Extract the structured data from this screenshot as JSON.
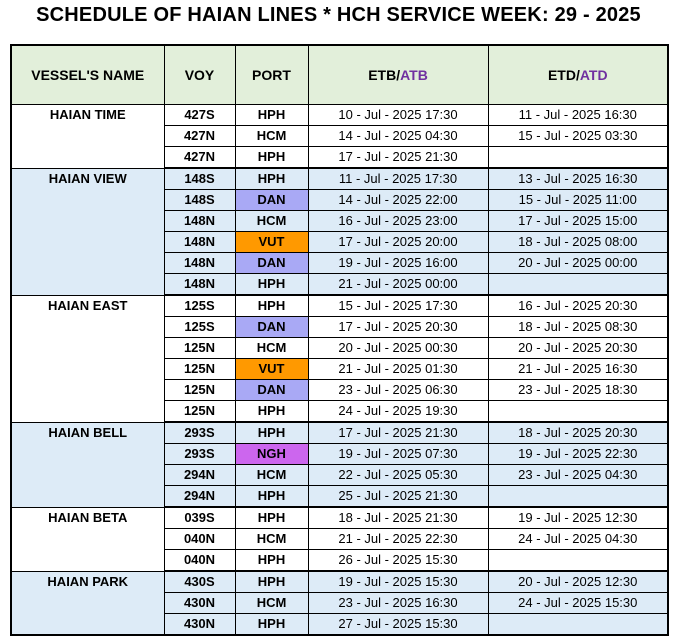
{
  "title": "SCHEDULE OF HAIAN LINES * HCH SERVICE WEEK: 29 - 2025",
  "headers": {
    "vessel": "VESSEL'S NAME",
    "voy": "VOY",
    "port": "PORT",
    "etb_a": "ETB/",
    "etb_b": "ATB",
    "etd_a": "ETD/",
    "etd_b": "ATD"
  },
  "colors": {
    "header_bg": "#e2efda",
    "group_blue_bg": "#ddebf7",
    "accent_purple": "#7030a0",
    "port_dan": "#a9a9f5",
    "port_vut": "#ff9900",
    "port_ngh": "#cc66ee"
  },
  "vessels": [
    {
      "name": "HAIAN TIME",
      "rows": [
        {
          "voy": "427S",
          "port": "HPH",
          "etb": "10 - Jul - 2025 17:30",
          "etd": "11 - Jul - 2025 16:30"
        },
        {
          "voy": "427N",
          "port": "HCM",
          "etb": "14 - Jul - 2025 04:30",
          "etd": "15 - Jul - 2025 03:30"
        },
        {
          "voy": "427N",
          "port": "HPH",
          "etb": "17 - Jul - 2025 21:30",
          "etd": ""
        }
      ]
    },
    {
      "name": "HAIAN VIEW",
      "rows": [
        {
          "voy": "148S",
          "port": "HPH",
          "etb": "11 - Jul - 2025 17:30",
          "etd": "13 - Jul - 2025 16:30"
        },
        {
          "voy": "148S",
          "port": "DAN",
          "etb": "14 - Jul - 2025 22:00",
          "etd": "15 - Jul - 2025 11:00"
        },
        {
          "voy": "148N",
          "port": "HCM",
          "etb": "16 - Jul - 2025 23:00",
          "etd": "17 - Jul - 2025 15:00"
        },
        {
          "voy": "148N",
          "port": "VUT",
          "etb": "17 - Jul - 2025 20:00",
          "etd": "18 - Jul - 2025 08:00"
        },
        {
          "voy": "148N",
          "port": "DAN",
          "etb": "19 - Jul - 2025 16:00",
          "etd": "20 - Jul - 2025 00:00"
        },
        {
          "voy": "148N",
          "port": "HPH",
          "etb": "21 - Jul - 2025 00:00",
          "etd": ""
        }
      ]
    },
    {
      "name": "HAIAN EAST",
      "rows": [
        {
          "voy": "125S",
          "port": "HPH",
          "etb": "15 - Jul - 2025 17:30",
          "etd": "16 - Jul - 2025 20:30"
        },
        {
          "voy": "125S",
          "port": "DAN",
          "etb": "17 - Jul - 2025 20:30",
          "etd": "18 - Jul - 2025 08:30"
        },
        {
          "voy": "125N",
          "port": "HCM",
          "etb": "20 - Jul - 2025 00:30",
          "etd": "20 - Jul - 2025 20:30"
        },
        {
          "voy": "125N",
          "port": "VUT",
          "etb": "21 - Jul - 2025 01:30",
          "etd": "21 - Jul - 2025 16:30"
        },
        {
          "voy": "125N",
          "port": "DAN",
          "etb": "23 - Jul - 2025 06:30",
          "etd": "23 - Jul - 2025 18:30"
        },
        {
          "voy": "125N",
          "port": "HPH",
          "etb": "24 - Jul - 2025 19:30",
          "etd": ""
        }
      ]
    },
    {
      "name": "HAIAN BELL",
      "rows": [
        {
          "voy": "293S",
          "port": "HPH",
          "etb": "17 - Jul - 2025 21:30",
          "etd": "18 - Jul - 2025 20:30"
        },
        {
          "voy": "293S",
          "port": "NGH",
          "etb": "19 - Jul - 2025 07:30",
          "etd": "19 - Jul - 2025 22:30"
        },
        {
          "voy": "294N",
          "port": "HCM",
          "etb": "22 - Jul - 2025 05:30",
          "etd": "23 - Jul - 2025 04:30"
        },
        {
          "voy": "294N",
          "port": "HPH",
          "etb": "25 - Jul - 2025 21:30",
          "etd": ""
        }
      ]
    },
    {
      "name": "HAIAN BETA",
      "rows": [
        {
          "voy": "039S",
          "port": "HPH",
          "etb": "18 - Jul - 2025 21:30",
          "etd": "19 - Jul - 2025 12:30"
        },
        {
          "voy": "040N",
          "port": "HCM",
          "etb": "21 - Jul - 2025 22:30",
          "etd": "24 - Jul - 2025 04:30"
        },
        {
          "voy": "040N",
          "port": "HPH",
          "etb": "26 - Jul - 2025 15:30",
          "etd": ""
        }
      ]
    },
    {
      "name": "HAIAN PARK",
      "rows": [
        {
          "voy": "430S",
          "port": "HPH",
          "etb": "19 - Jul - 2025 15:30",
          "etd": "20 - Jul - 2025 12:30"
        },
        {
          "voy": "430N",
          "port": "HCM",
          "etb": "23 - Jul - 2025 16:30",
          "etd": "24 - Jul - 2025 15:30"
        },
        {
          "voy": "430N",
          "port": "HPH",
          "etb": "27 - Jul - 2025 15:30",
          "etd": ""
        }
      ]
    }
  ]
}
